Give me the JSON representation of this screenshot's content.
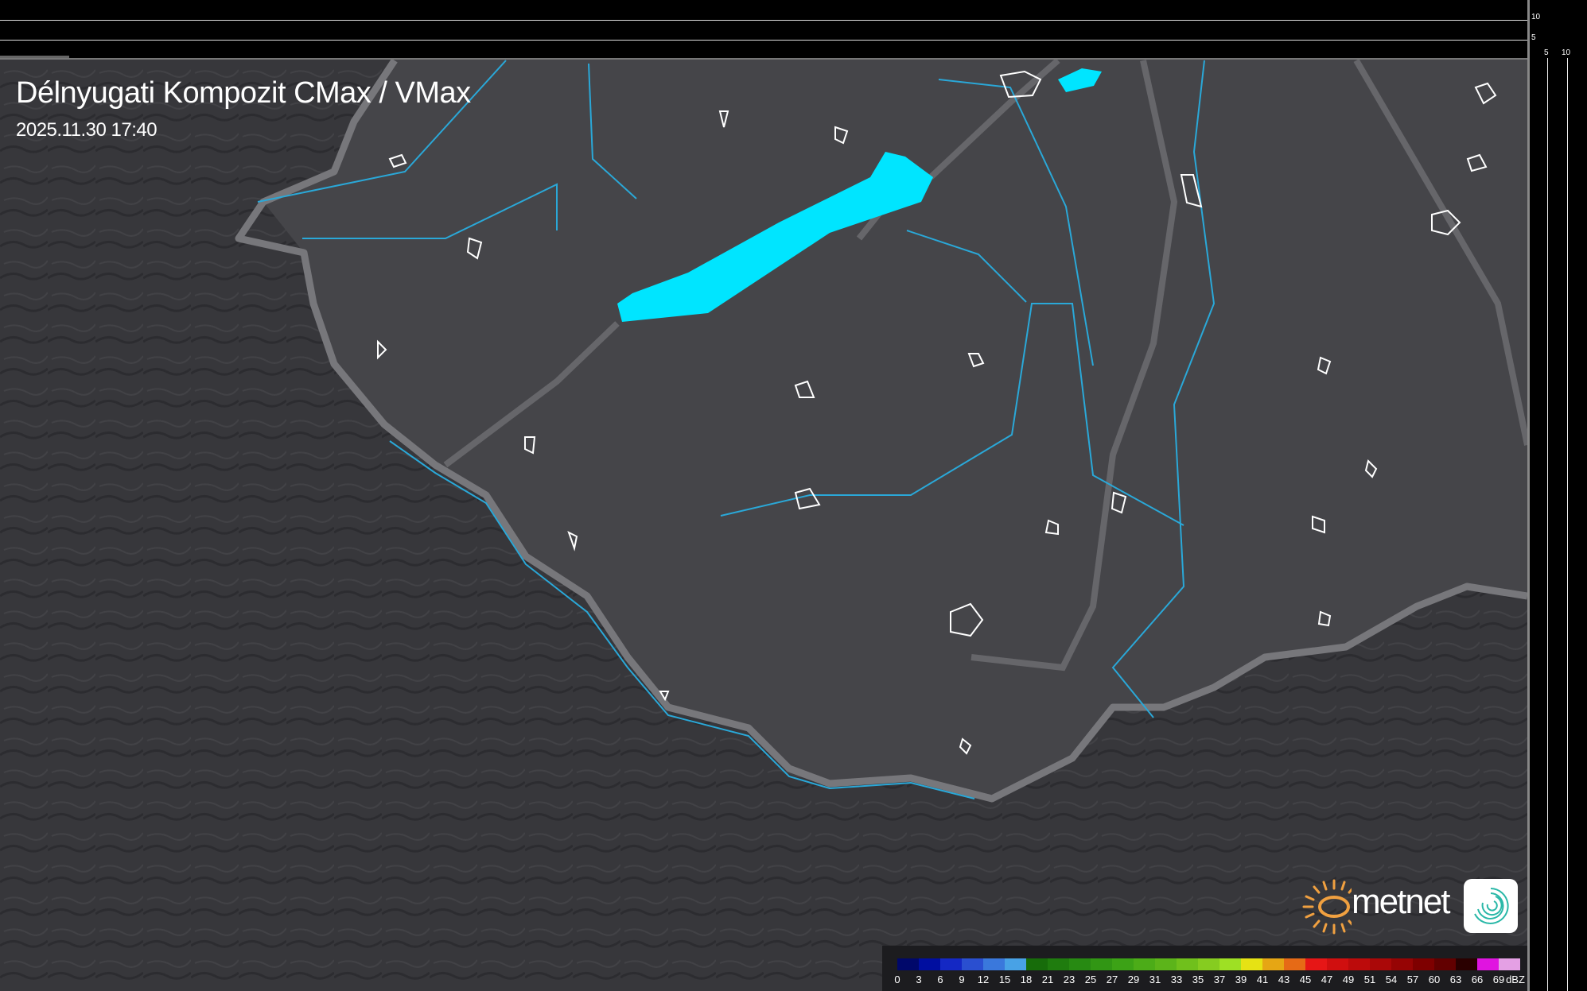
{
  "header": {
    "title": "Délnyugati Kompozit CMax / VMax",
    "timestamp": "2025.11.30 17:40"
  },
  "scales": {
    "vertical_labels": [
      "10",
      "5"
    ],
    "horizontal_labels": [
      "5",
      "10"
    ]
  },
  "map": {
    "colors": {
      "background": "#37373b",
      "region": "#454549",
      "border": "#77777b",
      "river": "#2aa8d8",
      "lake": "#00e5ff",
      "settlement_outline": "#ffffff"
    },
    "icons": [
      "lake-balaton-shape",
      "country-border",
      "river-lines",
      "settlement-outlines"
    ]
  },
  "legend": {
    "unit": "dBZ",
    "labels": [
      "0",
      "3",
      "6",
      "9",
      "12",
      "15",
      "18",
      "21",
      "23",
      "25",
      "27",
      "29",
      "31",
      "33",
      "35",
      "37",
      "39",
      "41",
      "43",
      "45",
      "47",
      "49",
      "51",
      "54",
      "57",
      "60",
      "63",
      "66",
      "69"
    ],
    "colors": [
      "#00086a",
      "#000ea0",
      "#1428c4",
      "#2a4fd0",
      "#3a78dc",
      "#48a2e6",
      "#176c0a",
      "#1f7c0e",
      "#278a12",
      "#319614",
      "#3ca216",
      "#4cac18",
      "#5cb41a",
      "#70c01c",
      "#86cc20",
      "#9ee024",
      "#e6e214",
      "#e6a614",
      "#e66a16",
      "#e61616",
      "#d00f0f",
      "#bc0b0b",
      "#aa0808",
      "#960404",
      "#7e0000",
      "#620000",
      "#2a0000",
      "#e014e0",
      "#e4a0e4",
      "#a0e6e6"
    ]
  },
  "logo": {
    "brand": "metnet",
    "sun_color": "#f0a040",
    "app_icon_color": "#2ab8a8"
  }
}
